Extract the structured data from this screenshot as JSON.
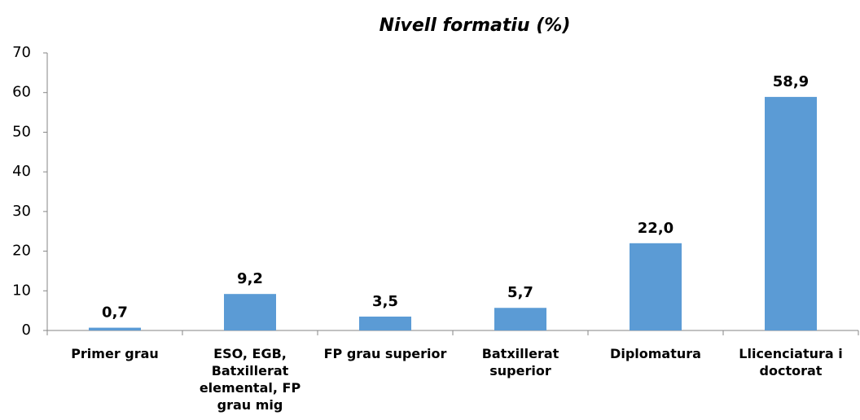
{
  "chart_data": {
    "type": "bar",
    "title": "Nivell formatiu (%)",
    "categories": [
      "Primer grau",
      "ESO, EGB, Batxillerat elemental, FP grau mig",
      "FP grau superior",
      "Batxillerat superior",
      "Diplomatura",
      "Llicenciatura i doctorat"
    ],
    "values": [
      0.7,
      9.2,
      3.5,
      5.7,
      22.0,
      58.9
    ],
    "value_labels": [
      "0,7",
      "9,2",
      "3,5",
      "5,7",
      "22,0",
      "58,9"
    ],
    "color": "#5b9bd5",
    "ylim": [
      0,
      70
    ],
    "yticks": [
      0,
      10,
      20,
      30,
      40,
      50,
      60,
      70
    ],
    "grid": false
  }
}
